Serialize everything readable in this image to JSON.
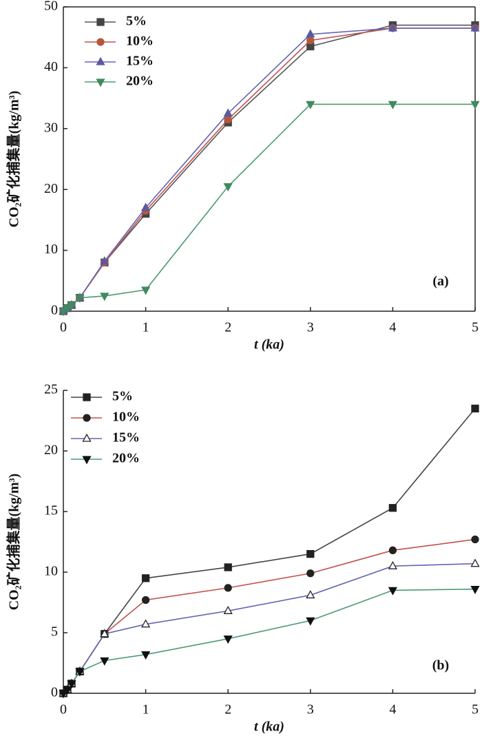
{
  "chart_data": [
    {
      "type": "line",
      "panel_label": "(a)",
      "x_label": "t (ka)",
      "y_label": "CO₂矿化捕集量(kg/m³)",
      "x": [
        0,
        0.05,
        0.1,
        0.2,
        0.5,
        1,
        2,
        3,
        4,
        5
      ],
      "xlim": [
        0,
        5
      ],
      "xticks": [
        0,
        1,
        2,
        3,
        4,
        5
      ],
      "ylim": [
        0,
        50
      ],
      "yticks": [
        0,
        10,
        20,
        30,
        40,
        50
      ],
      "box": true,
      "series": [
        {
          "name": "5%",
          "color": "#555555",
          "marker": "square",
          "marker_color": "#444444",
          "marker_fill": true,
          "values": [
            0,
            0.5,
            1,
            2.2,
            8,
            16,
            31,
            43.5,
            47,
            47
          ]
        },
        {
          "name": "10%",
          "color": "#c0504d",
          "marker": "circle",
          "marker_color": "#b5583a",
          "marker_fill": true,
          "values": [
            0,
            0.5,
            1,
            2.2,
            8,
            16.5,
            31.5,
            44.5,
            46.5,
            46.5
          ]
        },
        {
          "name": "15%",
          "color": "#6464b4",
          "marker": "triangle-up",
          "marker_color": "#5a5aa0",
          "marker_fill": true,
          "values": [
            0,
            0.5,
            1,
            2.2,
            8.2,
            17,
            32.5,
            45.5,
            46.5,
            46.5
          ]
        },
        {
          "name": "20%",
          "color": "#4a9a6e",
          "marker": "triangle-down",
          "marker_color": "#3f8a60",
          "marker_fill": true,
          "values": [
            0,
            0.5,
            1,
            2.2,
            2.5,
            3.5,
            20.5,
            34,
            34,
            34
          ]
        }
      ]
    },
    {
      "type": "line",
      "panel_label": "(b)",
      "x_label": "t (ka)",
      "y_label": "CO₂矿化捕集量(kg/m³)",
      "x": [
        0,
        0.05,
        0.1,
        0.2,
        0.5,
        1,
        2,
        3,
        4,
        5
      ],
      "xlim": [
        0,
        5
      ],
      "xticks": [
        0,
        1,
        2,
        3,
        4,
        5
      ],
      "ylim": [
        0,
        25
      ],
      "yticks": [
        0,
        5,
        10,
        15,
        20,
        25
      ],
      "box": false,
      "series": [
        {
          "name": "5%",
          "color": "#444444",
          "marker": "square",
          "marker_color": "#222222",
          "marker_fill": true,
          "values": [
            0,
            0.3,
            0.8,
            1.8,
            4.9,
            9.5,
            10.4,
            11.5,
            15.3,
            23.5
          ]
        },
        {
          "name": "10%",
          "color": "#c0504d",
          "marker": "circle",
          "marker_color": "#222222",
          "marker_fill": true,
          "values": [
            0,
            0.3,
            0.8,
            1.8,
            4.9,
            7.7,
            8.7,
            9.9,
            11.8,
            12.7
          ]
        },
        {
          "name": "15%",
          "color": "#6464b4",
          "marker": "triangle-up",
          "marker_color": "#222222",
          "marker_fill": false,
          "values": [
            0,
            0.3,
            0.8,
            1.8,
            4.9,
            5.7,
            6.8,
            8.1,
            10.5,
            10.7
          ]
        },
        {
          "name": "20%",
          "color": "#4a9a6e",
          "marker": "triangle-down",
          "marker_color": "#111111",
          "marker_fill": true,
          "values": [
            0,
            0.3,
            0.8,
            1.8,
            2.7,
            3.2,
            4.5,
            6.0,
            8.5,
            8.6
          ]
        }
      ]
    }
  ]
}
